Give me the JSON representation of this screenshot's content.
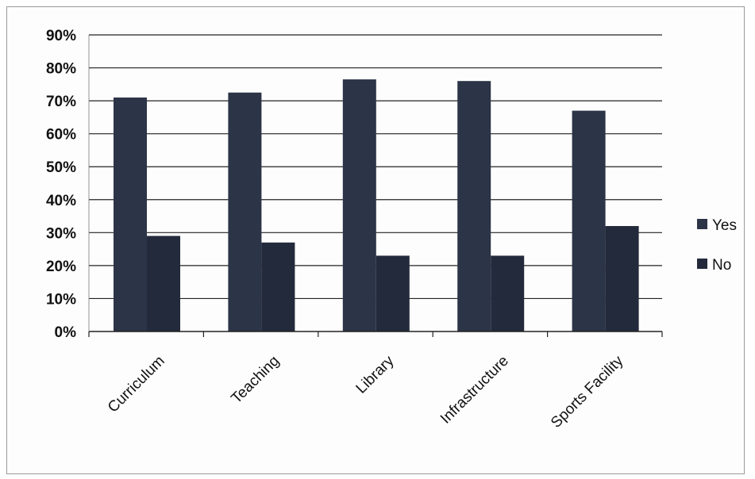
{
  "chart_data": {
    "type": "bar",
    "title": "",
    "xlabel": "",
    "ylabel": "",
    "categories": [
      "Curriculum",
      "Teaching",
      "Library",
      "Infrastructure",
      "Sports Facility"
    ],
    "series": [
      {
        "name": "Yes",
        "values": [
          71,
          72.5,
          76.5,
          76,
          67
        ]
      },
      {
        "name": "No",
        "values": [
          29,
          27,
          23,
          23,
          32
        ]
      }
    ],
    "ylim": [
      0,
      90
    ],
    "yticks": [
      "0%",
      "10%",
      "20%",
      "30%",
      "40%",
      "50%",
      "60%",
      "70%",
      "80%",
      "90%"
    ],
    "grid": true,
    "legend": "right",
    "colors": {
      "yes": "#2c3447",
      "no": "#232a3b",
      "grid": "#222222"
    }
  }
}
